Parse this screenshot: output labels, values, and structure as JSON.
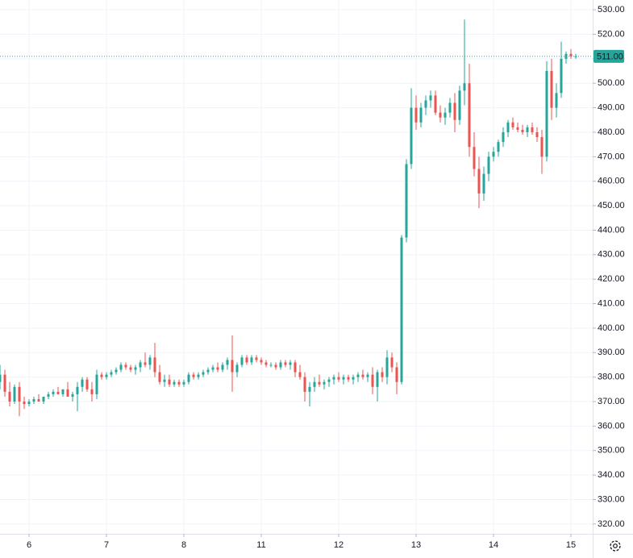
{
  "chart_data": {
    "type": "candlestick",
    "up_color": "#26a69a",
    "down_color": "#ef5350",
    "grid": true,
    "xlim": [
      0,
      122.5
    ],
    "xticks": [
      {
        "value": 6,
        "label": "6"
      },
      {
        "value": 22,
        "label": "7"
      },
      {
        "value": 38,
        "label": "8"
      },
      {
        "value": 54,
        "label": "11"
      },
      {
        "value": 70,
        "label": "12"
      },
      {
        "value": 86,
        "label": "13"
      },
      {
        "value": 102,
        "label": "14"
      },
      {
        "value": 118,
        "label": "15"
      }
    ],
    "ylim": [
      316,
      534
    ],
    "yticks": [
      {
        "value": 320,
        "label": "320.00"
      },
      {
        "value": 330,
        "label": "330.00"
      },
      {
        "value": 340,
        "label": "340.00"
      },
      {
        "value": 350,
        "label": "350.00"
      },
      {
        "value": 360,
        "label": "360.00"
      },
      {
        "value": 370,
        "label": "370.00"
      },
      {
        "value": 380,
        "label": "380.00"
      },
      {
        "value": 390,
        "label": "390.00"
      },
      {
        "value": 400,
        "label": "400.00"
      },
      {
        "value": 410,
        "label": "410.00"
      },
      {
        "value": 420,
        "label": "420.00"
      },
      {
        "value": 430,
        "label": "430.00"
      },
      {
        "value": 440,
        "label": "440.00"
      },
      {
        "value": 450,
        "label": "450.00"
      },
      {
        "value": 460,
        "label": "460.00"
      },
      {
        "value": 470,
        "label": "470.00"
      },
      {
        "value": 480,
        "label": "480.00"
      },
      {
        "value": 490,
        "label": "490.00"
      },
      {
        "value": 500,
        "label": "500.00"
      },
      {
        "value": 510,
        "label": "510.00"
      },
      {
        "value": 520,
        "label": "520.00"
      },
      {
        "value": 530,
        "label": "530.00"
      }
    ],
    "last_price": {
      "value": 511,
      "label": "511.00"
    },
    "x": [
      0,
      1,
      2,
      3,
      4,
      5,
      6,
      7,
      8,
      9,
      10,
      11,
      12,
      13,
      14,
      15,
      16,
      17,
      18,
      19,
      20,
      21,
      22,
      23,
      24,
      25,
      26,
      27,
      28,
      29,
      30,
      31,
      32,
      33,
      34,
      35,
      36,
      37,
      38,
      39,
      40,
      41,
      42,
      43,
      44,
      45,
      46,
      47,
      48,
      49,
      50,
      51,
      52,
      53,
      54,
      55,
      56,
      57,
      58,
      59,
      60,
      61,
      62,
      63,
      64,
      65,
      66,
      67,
      68,
      69,
      70,
      71,
      72,
      73,
      74,
      75,
      76,
      77,
      78,
      79,
      80,
      81,
      82,
      83,
      84,
      85,
      86,
      87,
      88,
      89,
      90,
      91,
      92,
      93,
      94,
      95,
      96,
      97,
      98,
      99,
      100,
      101,
      102,
      103,
      104,
      105,
      106,
      107,
      108,
      109,
      110,
      111,
      112,
      113,
      114,
      115,
      116,
      117,
      118,
      119
    ],
    "ohlc": [
      [
        378,
        385,
        375,
        381
      ],
      [
        381,
        383,
        372,
        374
      ],
      [
        374,
        378,
        368,
        370
      ],
      [
        370,
        377,
        369,
        376
      ],
      [
        376,
        378,
        364,
        370
      ],
      [
        370,
        372,
        367,
        369
      ],
      [
        369,
        371,
        368,
        370
      ],
      [
        370,
        372,
        369,
        371
      ],
      [
        371,
        373,
        370,
        370
      ],
      [
        370,
        372,
        369,
        372
      ],
      [
        372,
        374,
        371,
        373
      ],
      [
        373,
        375,
        372,
        374
      ],
      [
        374,
        376,
        373,
        373
      ],
      [
        373,
        375,
        372,
        375
      ],
      [
        375,
        378,
        373,
        372
      ],
      [
        372,
        374,
        370,
        373
      ],
      [
        373,
        378,
        366,
        376
      ],
      [
        376,
        380,
        374,
        379
      ],
      [
        379,
        380,
        374,
        375
      ],
      [
        375,
        378,
        370,
        373
      ],
      [
        373,
        383,
        371,
        381
      ],
      [
        381,
        382,
        379,
        380
      ],
      [
        380,
        382,
        379,
        381
      ],
      [
        381,
        383,
        380,
        382
      ],
      [
        382,
        384,
        381,
        383
      ],
      [
        383,
        386,
        382,
        385
      ],
      [
        385,
        386,
        383,
        384
      ],
      [
        384,
        385,
        382,
        383
      ],
      [
        383,
        385,
        381,
        384
      ],
      [
        384,
        387,
        382,
        386
      ],
      [
        386,
        390,
        384,
        385
      ],
      [
        385,
        389,
        383,
        388
      ],
      [
        388,
        394,
        380,
        382
      ],
      [
        382,
        385,
        377,
        378
      ],
      [
        378,
        381,
        376,
        379
      ],
      [
        379,
        381,
        376,
        377
      ],
      [
        377,
        379,
        376,
        378
      ],
      [
        378,
        379,
        376,
        377
      ],
      [
        377,
        379,
        376,
        378
      ],
      [
        378,
        382,
        377,
        381
      ],
      [
        381,
        382,
        379,
        380
      ],
      [
        380,
        382,
        379,
        381
      ],
      [
        381,
        383,
        380,
        382
      ],
      [
        382,
        384,
        381,
        383
      ],
      [
        383,
        385,
        382,
        384
      ],
      [
        384,
        386,
        382,
        383
      ],
      [
        383,
        386,
        382,
        385
      ],
      [
        385,
        388,
        383,
        387
      ],
      [
        387,
        397,
        374,
        382
      ],
      [
        382,
        386,
        380,
        385
      ],
      [
        385,
        389,
        384,
        388
      ],
      [
        388,
        389,
        385,
        386
      ],
      [
        386,
        389,
        385,
        388
      ],
      [
        388,
        389,
        386,
        387
      ],
      [
        387,
        388,
        385,
        386
      ],
      [
        386,
        387,
        384,
        385
      ],
      [
        385,
        386,
        384,
        385
      ],
      [
        385,
        386,
        383,
        384
      ],
      [
        384,
        387,
        383,
        386
      ],
      [
        386,
        387,
        384,
        385
      ],
      [
        385,
        387,
        383,
        386
      ],
      [
        386,
        387,
        380,
        382
      ],
      [
        382,
        385,
        379,
        380
      ],
      [
        380,
        382,
        370,
        374
      ],
      [
        374,
        378,
        368,
        376
      ],
      [
        376,
        380,
        374,
        378
      ],
      [
        378,
        381,
        376,
        377
      ],
      [
        377,
        379,
        375,
        378
      ],
      [
        378,
        380,
        376,
        379
      ],
      [
        379,
        381,
        377,
        380
      ],
      [
        380,
        382,
        378,
        379
      ],
      [
        379,
        381,
        377,
        380
      ],
      [
        380,
        381,
        378,
        379
      ],
      [
        379,
        381,
        377,
        380
      ],
      [
        380,
        382,
        378,
        381
      ],
      [
        381,
        383,
        379,
        380
      ],
      [
        380,
        382,
        378,
        381
      ],
      [
        381,
        384,
        373,
        376
      ],
      [
        376,
        383,
        370,
        382
      ],
      [
        382,
        384,
        378,
        380
      ],
      [
        380,
        391,
        377,
        388
      ],
      [
        388,
        390,
        382,
        384
      ],
      [
        384,
        386,
        373,
        378
      ],
      [
        378,
        438,
        377,
        437
      ],
      [
        437,
        469,
        435,
        467
      ],
      [
        467,
        498,
        465,
        490
      ],
      [
        490,
        495,
        481,
        484
      ],
      [
        484,
        492,
        482,
        490
      ],
      [
        490,
        495,
        487,
        493
      ],
      [
        493,
        497,
        490,
        495
      ],
      [
        495,
        497,
        487,
        488
      ],
      [
        488,
        491,
        484,
        486
      ],
      [
        486,
        490,
        483,
        488
      ],
      [
        488,
        494,
        486,
        492
      ],
      [
        492,
        496,
        480,
        485
      ],
      [
        485,
        499,
        483,
        497
      ],
      [
        497,
        526,
        491,
        500
      ],
      [
        500,
        508,
        470,
        474
      ],
      [
        474,
        480,
        462,
        465
      ],
      [
        465,
        470,
        449,
        455
      ],
      [
        455,
        466,
        452,
        463
      ],
      [
        463,
        472,
        460,
        470
      ],
      [
        470,
        474,
        468,
        472
      ],
      [
        472,
        477,
        470,
        476
      ],
      [
        476,
        482,
        474,
        480
      ],
      [
        480,
        485,
        478,
        484
      ],
      [
        484,
        486,
        481,
        482
      ],
      [
        482,
        484,
        480,
        481
      ],
      [
        481,
        483,
        479,
        480
      ],
      [
        480,
        483,
        478,
        482
      ],
      [
        482,
        484,
        479,
        480
      ],
      [
        480,
        482,
        476,
        478
      ],
      [
        478,
        481,
        463,
        470
      ],
      [
        470,
        509,
        468,
        505
      ],
      [
        505,
        510,
        485,
        490
      ],
      [
        490,
        500,
        486,
        496
      ],
      [
        496,
        517,
        494,
        510
      ],
      [
        510,
        513,
        508,
        512
      ],
      [
        512,
        514,
        510,
        511
      ],
      [
        511,
        512,
        510,
        511
      ]
    ]
  }
}
